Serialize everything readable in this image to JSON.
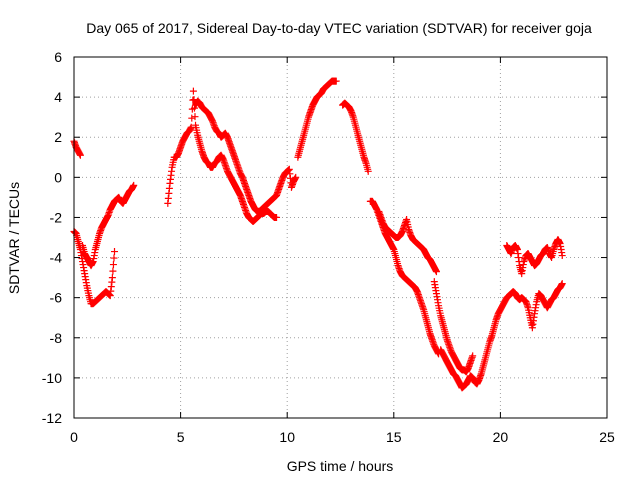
{
  "chart_data": {
    "type": "scatter",
    "title": "Day 065 of 2017, Sidereal Day-to-day VTEC variation (SDTVAR) for receiver goja",
    "xlabel": "GPS time / hours",
    "ylabel": "SDTVAR / TECUs",
    "xlim": [
      0,
      25
    ],
    "ylim": [
      -12,
      6
    ],
    "xticks": [
      0,
      5,
      10,
      15,
      20,
      25
    ],
    "yticks": [
      -12,
      -10,
      -8,
      -6,
      -4,
      -2,
      0,
      2,
      4,
      6
    ],
    "grid": true,
    "legend": "none",
    "marker": "plus",
    "series_color": "#ff0000",
    "series": [
      {
        "x": [
          0.0,
          0.1,
          0.2,
          0.3
        ],
        "y": [
          1.8,
          1.5,
          1.3,
          1.1
        ]
      },
      {
        "x": [
          0.0,
          0.1,
          0.2,
          0.3,
          0.4,
          0.5,
          0.6,
          0.7,
          0.8,
          0.9,
          1.0,
          1.1,
          1.2,
          1.3,
          1.4,
          1.5,
          1.6,
          1.7,
          1.8,
          1.9
        ],
        "y": [
          -2.7,
          -2.8,
          -3.2,
          -3.6,
          -4.2,
          -4.8,
          -5.4,
          -5.9,
          -6.3,
          -6.3,
          -6.2,
          -6.1,
          -6.0,
          -5.9,
          -5.8,
          -5.7,
          -5.8,
          -5.9,
          -5.0,
          -3.7
        ]
      },
      {
        "x": [
          0.4,
          0.5,
          0.6,
          0.7,
          0.8,
          0.9,
          1.0,
          1.1,
          1.2,
          1.3,
          1.4,
          1.5,
          1.6,
          1.7,
          1.8,
          1.9,
          2.0,
          2.1,
          2.2,
          2.3,
          2.4,
          2.5,
          2.6,
          2.7,
          2.8
        ],
        "y": [
          -3.4,
          -3.8,
          -4.0,
          -4.2,
          -4.4,
          -4.2,
          -3.6,
          -3.2,
          -2.8,
          -2.5,
          -2.3,
          -2.1,
          -1.9,
          -1.6,
          -1.4,
          -1.2,
          -1.1,
          -1.0,
          -1.2,
          -1.3,
          -1.1,
          -0.9,
          -0.7,
          -0.6,
          -0.4
        ]
      },
      {
        "x": [
          4.4,
          4.5,
          4.6,
          4.7,
          4.8,
          4.9,
          5.0,
          5.1,
          5.2,
          5.3,
          5.4,
          5.5,
          5.6,
          5.7,
          5.8,
          5.9,
          6.0,
          6.1,
          6.2,
          6.3,
          6.4,
          6.5,
          6.6,
          6.7,
          6.8,
          6.9,
          7.0,
          7.1,
          7.2,
          7.3,
          7.4,
          7.5,
          7.6,
          7.7,
          7.8,
          7.9,
          8.0,
          8.1,
          8.2,
          8.3,
          8.4,
          8.5,
          8.6,
          8.7,
          8.8,
          8.9,
          9.0,
          9.1,
          9.2,
          9.3,
          9.4,
          9.5
        ],
        "y": [
          -1.3,
          -0.3,
          0.5,
          1.0,
          1.0,
          1.2,
          1.5,
          1.8,
          2.0,
          2.2,
          2.3,
          2.5,
          4.3,
          2.6,
          2.1,
          1.7,
          1.3,
          1.0,
          0.8,
          0.7,
          0.5,
          0.5,
          0.7,
          0.8,
          1.0,
          1.1,
          0.9,
          0.6,
          0.3,
          0.1,
          -0.1,
          -0.3,
          -0.5,
          -0.7,
          -0.9,
          -1.2,
          -1.5,
          -1.8,
          -2.0,
          -2.1,
          -2.2,
          -2.1,
          -2.0,
          -1.9,
          -1.8,
          -1.8,
          -1.7,
          -1.7,
          -1.8,
          -1.9,
          -2.0,
          -2.0
        ]
      },
      {
        "x": [
          5.7,
          5.8,
          5.9,
          6.0,
          6.1,
          6.2,
          6.3,
          6.4,
          6.5,
          6.6,
          6.7,
          6.8,
          6.9,
          7.0,
          7.1,
          7.2,
          7.3,
          7.4,
          7.5,
          7.6,
          7.7,
          7.8,
          7.9,
          8.0,
          8.1,
          8.2,
          8.3,
          8.4,
          8.5,
          8.6,
          8.7,
          8.8,
          8.9,
          9.0,
          9.1,
          9.2,
          9.3,
          9.4,
          9.5,
          9.6,
          9.7,
          9.8,
          9.9,
          10.0,
          10.1,
          10.2,
          10.3,
          10.4
        ],
        "y": [
          3.6,
          3.8,
          3.7,
          3.5,
          3.4,
          3.3,
          3.2,
          3.0,
          2.8,
          2.5,
          2.3,
          2.2,
          2.0,
          2.1,
          2.2,
          2.0,
          1.7,
          1.4,
          1.1,
          0.8,
          0.5,
          0.2,
          0.0,
          -0.3,
          -0.6,
          -0.9,
          -1.2,
          -1.4,
          -1.6,
          -1.7,
          -1.7,
          -1.6,
          -1.5,
          -1.4,
          -1.3,
          -1.2,
          -1.1,
          -1.0,
          -0.9,
          -0.6,
          -0.3,
          0.0,
          0.2,
          0.3,
          0.4,
          -0.5,
          -0.2,
          0.0
        ]
      },
      {
        "x": [
          10.5,
          10.6,
          10.7,
          10.8,
          10.9,
          11.0,
          11.1,
          11.2,
          11.3,
          11.4,
          11.5,
          11.6,
          11.7,
          11.8,
          11.9,
          12.0,
          12.1,
          12.2,
          12.3
        ],
        "y": [
          1.0,
          1.4,
          1.8,
          2.2,
          2.6,
          3.0,
          3.3,
          3.6,
          3.8,
          4.0,
          4.1,
          4.2,
          4.4,
          4.5,
          4.6,
          4.7,
          4.8,
          4.8,
          4.8
        ]
      },
      {
        "x": [
          12.6,
          12.7,
          12.8,
          12.9,
          13.0,
          13.1,
          13.2,
          13.3,
          13.4,
          13.5,
          13.6,
          13.7,
          13.8
        ],
        "y": [
          3.6,
          3.7,
          3.6,
          3.5,
          3.3,
          3.0,
          2.6,
          2.2,
          1.8,
          1.4,
          1.0,
          0.7,
          0.3
        ]
      },
      {
        "x": [
          13.9,
          14.0,
          14.1,
          14.2,
          14.3,
          14.4,
          14.5,
          14.6,
          14.7,
          14.8,
          14.9,
          15.0,
          15.1,
          15.2,
          15.3,
          15.4,
          15.5,
          15.6,
          15.7,
          15.8,
          15.9,
          16.0,
          16.1,
          16.2,
          16.3,
          16.4,
          16.5,
          16.6,
          16.7,
          16.8,
          16.9,
          17.0,
          17.1
        ],
        "y": [
          -1.2,
          -1.2,
          -1.4,
          -1.6,
          -1.9,
          -2.2,
          -2.5,
          -2.8,
          -3.0,
          -3.2,
          -3.4,
          -3.6,
          -4.0,
          -4.4,
          -4.7,
          -4.9,
          -5.0,
          -5.1,
          -5.2,
          -5.3,
          -5.4,
          -5.5,
          -5.7,
          -6.0,
          -6.3,
          -6.6,
          -7.0,
          -7.4,
          -7.8,
          -8.1,
          -8.4,
          -8.6,
          -8.8
        ]
      },
      {
        "x": [
          14.3,
          14.4,
          14.5,
          14.6,
          14.7,
          14.8,
          14.9,
          15.0,
          15.1,
          15.2,
          15.3,
          15.4,
          15.5,
          15.6,
          15.7,
          15.8,
          15.9,
          16.0,
          16.1,
          16.2,
          16.3,
          16.4,
          16.5,
          16.6,
          16.7,
          16.8,
          16.9,
          17.0
        ],
        "y": [
          -1.7,
          -2.0,
          -2.3,
          -2.5,
          -2.6,
          -2.7,
          -2.8,
          -2.9,
          -3.0,
          -3.0,
          -2.9,
          -2.7,
          -2.4,
          -2.1,
          -2.6,
          -2.9,
          -3.1,
          -3.2,
          -3.3,
          -3.4,
          -3.5,
          -3.6,
          -3.8,
          -4.0,
          -4.1,
          -4.3,
          -4.5,
          -4.7
        ]
      },
      {
        "x": [
          16.9,
          17.0,
          17.1,
          17.2,
          17.3,
          17.4,
          17.5,
          17.6,
          17.7,
          17.8,
          17.9,
          18.0,
          18.1,
          18.2,
          18.3,
          18.4,
          18.5,
          18.6,
          18.7
        ],
        "y": [
          -5.2,
          -5.8,
          -6.4,
          -6.9,
          -7.3,
          -7.7,
          -8.1,
          -8.4,
          -8.7,
          -8.9,
          -9.1,
          -9.3,
          -9.5,
          -9.6,
          -9.6,
          -9.7,
          -9.5,
          -9.2,
          -8.9
        ]
      },
      {
        "x": [
          17.2,
          17.3,
          17.4,
          17.5,
          17.6,
          17.7,
          17.8,
          17.9,
          18.0,
          18.1,
          18.2,
          18.3,
          18.4,
          18.5,
          18.6,
          18.7,
          18.8,
          18.9,
          19.0,
          19.1,
          19.2,
          19.3,
          19.4,
          19.5,
          19.6,
          19.7,
          19.8,
          19.9,
          20.0,
          20.1,
          20.2,
          20.3,
          20.4,
          20.5,
          20.6,
          20.7,
          20.8,
          20.9,
          21.0,
          21.1,
          21.2,
          21.3,
          21.4,
          21.5,
          21.6,
          21.7,
          21.8,
          21.9,
          22.0,
          22.1,
          22.2,
          22.3,
          22.4,
          22.5,
          22.6,
          22.7,
          22.8,
          22.9
        ],
        "y": [
          -8.6,
          -8.8,
          -9.0,
          -9.2,
          -9.4,
          -9.6,
          -9.8,
          -9.9,
          -10.1,
          -10.3,
          -10.5,
          -10.4,
          -10.3,
          -10.1,
          -9.9,
          -10.0,
          -10.2,
          -10.3,
          -10.1,
          -9.8,
          -9.4,
          -9.0,
          -8.6,
          -8.2,
          -7.9,
          -7.5,
          -7.1,
          -6.8,
          -6.6,
          -6.4,
          -6.2,
          -6.0,
          -5.9,
          -5.8,
          -5.7,
          -5.8,
          -6.0,
          -6.1,
          -6.0,
          -6.1,
          -6.2,
          -6.5,
          -7.0,
          -7.5,
          -6.8,
          -6.2,
          -5.8,
          -5.9,
          -6.1,
          -6.3,
          -6.5,
          -6.3,
          -6.1,
          -6.0,
          -5.8,
          -5.6,
          -5.5,
          -5.3
        ]
      },
      {
        "x": [
          20.3,
          20.4,
          20.5,
          20.6,
          20.7,
          20.8,
          20.9,
          21.0,
          21.1,
          21.2,
          21.3,
          21.4,
          21.5,
          21.6,
          21.7,
          21.8,
          21.9,
          22.0,
          22.1,
          22.2,
          22.3,
          22.4,
          22.5,
          22.6,
          22.7,
          22.8,
          22.9
        ],
        "y": [
          -3.4,
          -3.6,
          -3.8,
          -3.5,
          -3.4,
          -3.6,
          -4.4,
          -4.8,
          -4.2,
          -3.9,
          -3.8,
          -4.0,
          -4.2,
          -4.4,
          -4.3,
          -4.1,
          -3.9,
          -3.8,
          -3.6,
          -3.5,
          -3.8,
          -4.0,
          -3.6,
          -3.3,
          -3.1,
          -3.3,
          -3.9
        ]
      }
    ]
  }
}
